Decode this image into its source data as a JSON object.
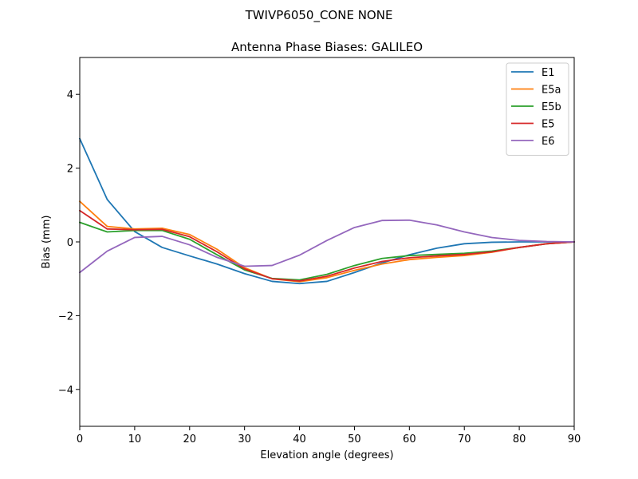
{
  "suptitle": "TWIVP6050_CONE  NONE",
  "chart_data": {
    "type": "line",
    "title": "Antenna Phase Biases: GALILEO",
    "xlabel": "Elevation angle (degrees)",
    "ylabel": "Bias (mm)",
    "xlim": [
      0,
      90
    ],
    "ylim": [
      -5,
      5
    ],
    "xticks": [
      0,
      10,
      20,
      30,
      40,
      50,
      60,
      70,
      80,
      90
    ],
    "yticks": [
      -4,
      -2,
      0,
      2,
      4
    ],
    "grid": false,
    "legend_position": "top-right",
    "x": [
      0,
      5,
      10,
      15,
      20,
      25,
      30,
      35,
      40,
      45,
      50,
      55,
      60,
      65,
      70,
      75,
      80,
      85,
      90
    ],
    "series": [
      {
        "name": "E1",
        "color": "#1f77b4",
        "values": [
          2.8,
          1.15,
          0.28,
          -0.15,
          -0.38,
          -0.6,
          -0.86,
          -1.07,
          -1.13,
          -1.07,
          -0.83,
          -0.57,
          -0.35,
          -0.17,
          -0.05,
          -0.01,
          0.0,
          0.0,
          0.0
        ]
      },
      {
        "name": "E5a",
        "color": "#ff7f0e",
        "values": [
          1.1,
          0.42,
          0.35,
          0.37,
          0.2,
          -0.2,
          -0.7,
          -1.0,
          -1.08,
          -0.97,
          -0.77,
          -0.6,
          -0.48,
          -0.42,
          -0.37,
          -0.28,
          -0.15,
          -0.05,
          0.0
        ]
      },
      {
        "name": "E5b",
        "color": "#2ca02c",
        "values": [
          0.53,
          0.27,
          0.31,
          0.31,
          0.07,
          -0.35,
          -0.76,
          -0.99,
          -1.03,
          -0.88,
          -0.64,
          -0.45,
          -0.37,
          -0.34,
          -0.31,
          -0.25,
          -0.15,
          -0.05,
          0.0
        ]
      },
      {
        "name": "E5",
        "color": "#d62728",
        "values": [
          0.85,
          0.35,
          0.33,
          0.34,
          0.14,
          -0.27,
          -0.73,
          -1.0,
          -1.06,
          -0.93,
          -0.71,
          -0.53,
          -0.43,
          -0.38,
          -0.34,
          -0.27,
          -0.15,
          -0.05,
          0.0
        ]
      },
      {
        "name": "E6",
        "color": "#9467bd",
        "values": [
          -0.83,
          -0.25,
          0.12,
          0.15,
          -0.08,
          -0.42,
          -0.66,
          -0.64,
          -0.36,
          0.04,
          0.39,
          0.58,
          0.59,
          0.46,
          0.27,
          0.12,
          0.04,
          0.01,
          0.0
        ]
      }
    ]
  }
}
